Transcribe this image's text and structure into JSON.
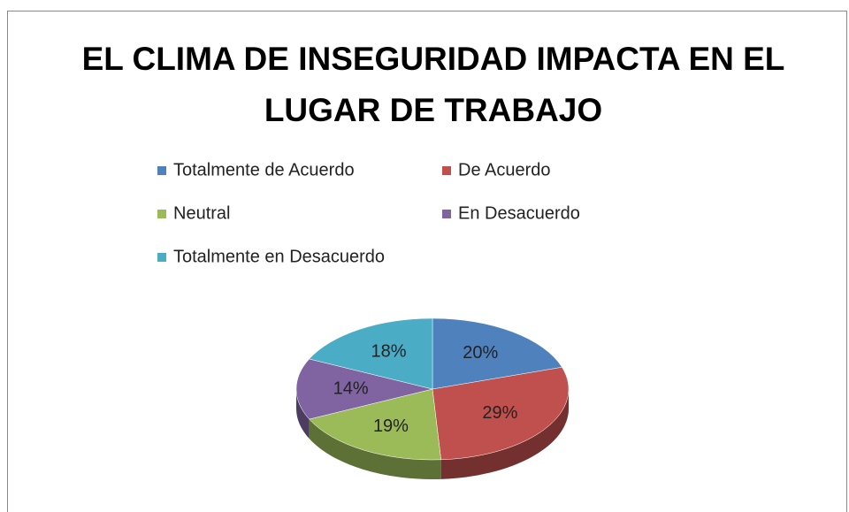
{
  "chart_data": {
    "type": "pie",
    "title": "EL CLIMA DE INSEGURIDAD IMPACTA EN EL LUGAR DE TRABAJO",
    "categories": [
      "Totalmente de Acuerdo",
      "De Acuerdo",
      "Neutral",
      "En Desacuerdo",
      "Totalmente en Desacuerdo"
    ],
    "values": [
      20,
      29,
      19,
      14,
      18
    ],
    "value_labels": [
      "20%",
      "29%",
      "19%",
      "14%",
      "18%"
    ],
    "colors": [
      "#4f81bd",
      "#c0504d",
      "#9bbb59",
      "#8064a2",
      "#4bacc6"
    ],
    "legend": "top"
  }
}
